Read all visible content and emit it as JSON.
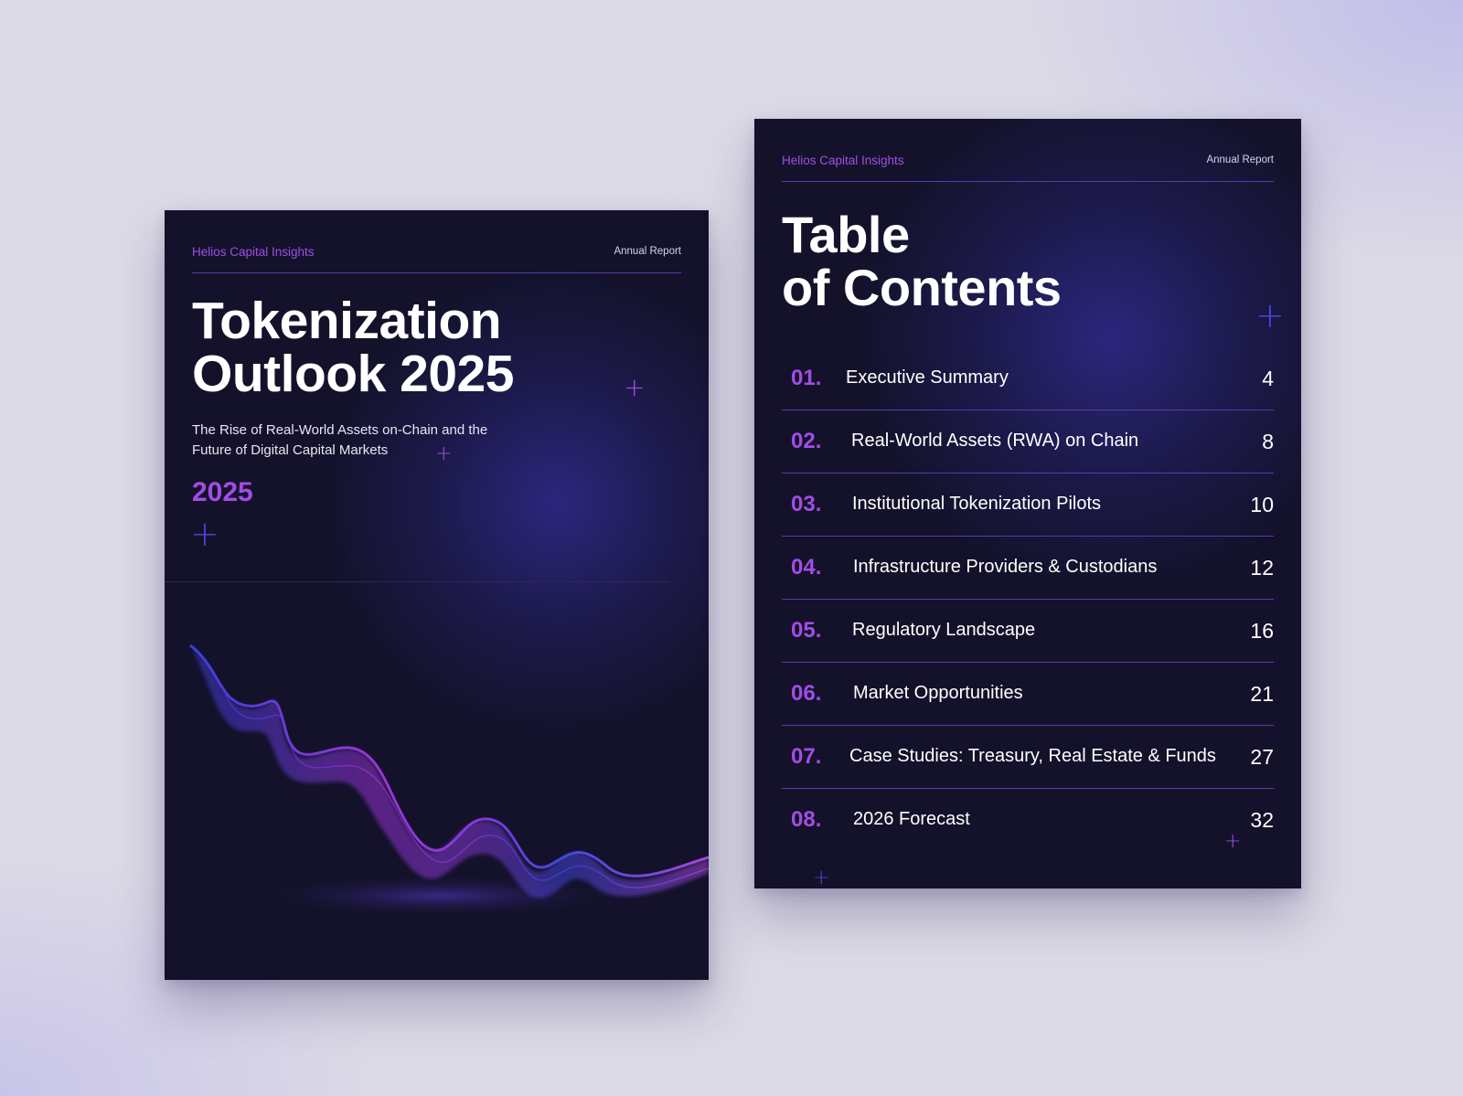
{
  "brand": "Helios Capital Insights",
  "report_type": "Annual Report",
  "cover": {
    "title_line1": "Tokenization",
    "title_line2": "Outlook 2025",
    "subtitle_line1": "The Rise of Real-World Assets on-Chain and the",
    "subtitle_line2": "Future of Digital Capital Markets",
    "year": "2025"
  },
  "toc": {
    "title_line1": "Table",
    "title_line2": "of Contents",
    "items": [
      {
        "num": "01.",
        "title": "Executive Summary",
        "page": "4"
      },
      {
        "num": "02.",
        "title": "Real-World Assets (RWA) on Chain",
        "page": "8"
      },
      {
        "num": "03.",
        "title": "Institutional Tokenization Pilots",
        "page": "10"
      },
      {
        "num": "04.",
        "title": "Infrastructure Providers & Custodians",
        "page": "12"
      },
      {
        "num": "05.",
        "title": "Regulatory Landscape",
        "page": "16"
      },
      {
        "num": "06.",
        "title": "Market Opportunities",
        "page": "21"
      },
      {
        "num": "07.",
        "title": "Case Studies: Treasury, Real Estate & Funds",
        "page": "27"
      },
      {
        "num": "08.",
        "title": "2026 Forecast",
        "page": "32"
      }
    ]
  },
  "decor": {
    "plus_glyph": "+",
    "colors": {
      "page_bg": "#13122a",
      "accent_purple": "#a34ce6",
      "accent_blue": "#4a44d8",
      "divider": "#5a3aa8"
    },
    "icons": [
      "plus-icon",
      "wave-graphic"
    ]
  }
}
